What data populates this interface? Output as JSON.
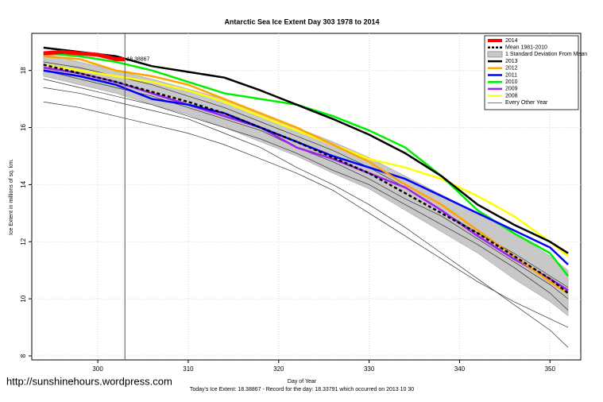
{
  "chart_data": {
    "type": "line",
    "title": "Antarctic Sea Ice Extent Day 303 1978 to 2014",
    "x_label": "Day of Year",
    "y_label": "Ice Extent in millions of sq. km.",
    "footer": "Today's Ice Extent: 18.38867  - Record for the day: 18.33791 which occurred on 2013 10 30",
    "watermark": "http://sunshinehours.wordpress.com",
    "annotation": "18.38867",
    "vline": 303,
    "xlim": [
      292.7,
      353.4
    ],
    "ylim": [
      7.86,
      19.3
    ],
    "xticks": [
      300,
      310,
      320,
      330,
      340,
      350
    ],
    "yticks": [
      8,
      10,
      12,
      14,
      16,
      18
    ],
    "grid": true,
    "legend": "top-right",
    "x": [
      294,
      298,
      302,
      306,
      310,
      314,
      318,
      322,
      326,
      330,
      334,
      338,
      342,
      346,
      350,
      352
    ],
    "band": {
      "name": "1 Standard Deviation From Mean",
      "color": "#c8c8c8",
      "upper": [
        18.6,
        18.3,
        18.0,
        17.7,
        17.35,
        17.0,
        16.5,
        16.0,
        15.5,
        14.95,
        14.3,
        13.65,
        13.0,
        12.3,
        11.5,
        11.0
      ],
      "lower": [
        17.8,
        17.5,
        17.2,
        16.8,
        16.45,
        16.0,
        15.5,
        15.0,
        14.4,
        13.85,
        13.1,
        12.35,
        11.6,
        10.7,
        9.9,
        9.4
      ]
    },
    "other_years": {
      "name": "Every Other Year",
      "color": "#333333",
      "lines": [
        [
          16.9,
          16.7,
          16.4,
          16.1,
          15.8,
          15.4,
          14.9,
          14.4,
          13.8,
          13.0,
          12.2,
          11.4,
          10.6,
          9.9,
          9.3,
          9.0
        ],
        [
          17.7,
          17.4,
          17.1,
          16.8,
          16.4,
          16.0,
          15.6,
          15.1,
          14.5,
          14.0,
          13.3,
          12.6,
          11.9,
          11.1,
          10.2,
          9.6
        ],
        [
          18.3,
          18.1,
          17.8,
          17.5,
          17.1,
          16.7,
          16.2,
          15.7,
          15.2,
          14.6,
          13.9,
          13.1,
          12.3,
          11.6,
          10.8,
          10.4
        ],
        [
          17.4,
          17.2,
          16.9,
          16.6,
          16.3,
          15.8,
          15.3,
          14.6,
          14.0,
          13.3,
          12.5,
          11.6,
          10.7,
          9.8,
          8.9,
          8.3
        ],
        [
          18.0,
          17.7,
          17.4,
          17.1,
          16.7,
          16.3,
          15.9,
          15.3,
          14.8,
          14.2,
          13.5,
          12.9,
          12.1,
          11.3,
          10.5,
          10.0
        ]
      ]
    },
    "series": [
      {
        "name": "2014",
        "color": "#ff0000",
        "width": 5,
        "x": [
          294,
          296,
          298,
          300,
          302,
          303
        ],
        "values": [
          18.6,
          18.65,
          18.6,
          18.55,
          18.4,
          18.39
        ]
      },
      {
        "name": "Mean 1981-2010",
        "color": "#000000",
        "width": 2.5,
        "dashed": true,
        "values": [
          18.2,
          17.9,
          17.6,
          17.25,
          16.9,
          16.5,
          16.0,
          15.5,
          14.95,
          14.4,
          13.7,
          13.0,
          12.3,
          11.5,
          10.7,
          10.2
        ]
      },
      {
        "name": "2013",
        "color": "#000000",
        "width": 2.5,
        "values": [
          18.8,
          18.65,
          18.5,
          18.15,
          17.95,
          17.75,
          17.3,
          16.8,
          16.3,
          15.75,
          15.1,
          14.3,
          13.3,
          12.6,
          12.0,
          11.6
        ]
      },
      {
        "name": "2012",
        "color": "#ffa500",
        "width": 2.5,
        "values": [
          18.5,
          18.4,
          18.0,
          17.8,
          17.5,
          17.0,
          16.5,
          16.0,
          15.4,
          14.8,
          14.0,
          13.3,
          12.4,
          11.5,
          10.6,
          10.2
        ]
      },
      {
        "name": "2011",
        "color": "#0000ff",
        "width": 2.5,
        "values": [
          18.0,
          17.8,
          17.5,
          17.0,
          16.8,
          16.5,
          16.0,
          15.5,
          15.0,
          14.6,
          14.2,
          13.6,
          13.0,
          12.4,
          11.8,
          11.2
        ]
      },
      {
        "name": "2010",
        "color": "#00ee00",
        "width": 2.5,
        "values": [
          18.6,
          18.5,
          18.3,
          18.0,
          17.6,
          17.2,
          17.0,
          16.8,
          16.4,
          15.9,
          15.3,
          14.3,
          13.1,
          12.3,
          11.6,
          10.8
        ]
      },
      {
        "name": "2009",
        "color": "#a020f0",
        "width": 2.5,
        "values": [
          18.1,
          17.9,
          17.6,
          17.2,
          16.8,
          16.4,
          16.0,
          15.3,
          14.9,
          14.4,
          13.9,
          13.1,
          12.2,
          11.4,
          10.7,
          10.3
        ]
      },
      {
        "name": "2008",
        "color": "#ffff00",
        "width": 2.5,
        "values": [
          18.2,
          18.0,
          17.8,
          17.6,
          17.3,
          16.9,
          16.4,
          15.9,
          15.4,
          14.9,
          14.6,
          14.2,
          13.6,
          12.9,
          12.0,
          11.5
        ]
      }
    ]
  }
}
